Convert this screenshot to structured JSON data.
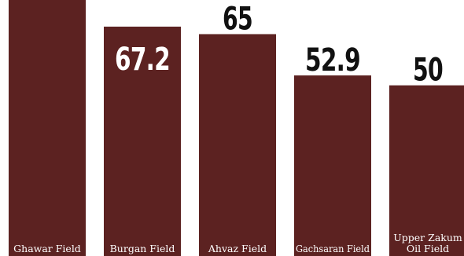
{
  "chart_data": {
    "type": "bar",
    "categories": [
      "Ghawar Field",
      "Burgan Field",
      "Ahvaz Field",
      "Gachsaran Field",
      "Upper Zakum Oil Field"
    ],
    "category_lines": [
      [
        "Ghawar Field"
      ],
      [
        "Burgan Field"
      ],
      [
        "Ahvaz Field"
      ],
      [
        "Gachsaran Field"
      ],
      [
        "Upper Zakum",
        "Oil Field"
      ]
    ],
    "values": [
      75,
      67.2,
      65,
      52.9,
      50
    ],
    "value_labels": [
      "",
      "67.2",
      "65",
      "52.9",
      "50"
    ],
    "title": "",
    "xlabel": "",
    "ylabel": "",
    "ylim": [
      0,
      75
    ],
    "grid": false,
    "bar_color": "#5c2221",
    "inside_label_color": "#ffffff",
    "outside_label_color": "#111111"
  }
}
